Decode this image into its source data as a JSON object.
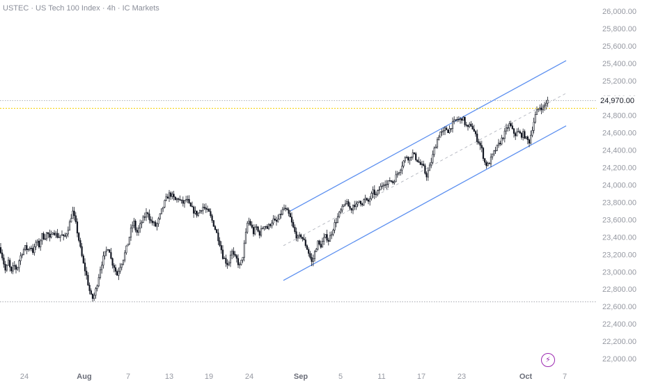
{
  "chart_title": "USTEC · US Tech 100 Index · 4h · IC Markets",
  "current_price_label": "24,970.00",
  "brand_icon": "lightning-bolt-icon",
  "colors": {
    "candle": "#131722",
    "channel": "#5b8ff0",
    "midline": "#b2b5be",
    "current_price_line": "#f5d000",
    "horizontal_level": "#9598a1",
    "axis_text": "#9598a1",
    "logo": "#9b27b0"
  },
  "chart_data": {
    "type": "candlestick",
    "title": "USTEC · US Tech 100 Index · 4h · IC Markets",
    "symbol": "USTEC",
    "interval": "4h",
    "exchange": "IC Markets",
    "ylim": [
      21900,
      26050
    ],
    "y_ticks": [
      "26,000.00",
      "25,800.00",
      "25,600.00",
      "25,400.00",
      "25,200.00",
      "25,000.00",
      "24,800.00",
      "24,600.00",
      "24,400.00",
      "24,200.00",
      "24,000.00",
      "23,800.00",
      "23,600.00",
      "23,400.00",
      "23,200.00",
      "23,000.00",
      "22,800.00",
      "22,600.00",
      "22,400.00",
      "22,200.00",
      "22,000.00"
    ],
    "x_ticks": [
      "24",
      "Aug",
      "7",
      "13",
      "19",
      "24",
      "Sep",
      "5",
      "11",
      "17",
      "23",
      "Oct",
      "7"
    ],
    "current_price": 24970,
    "horizontal_levels": [
      24970,
      22655
    ],
    "price_path": [
      [
        0,
        23280
      ],
      [
        4,
        23150
      ],
      [
        8,
        23000
      ],
      [
        12,
        23120
      ],
      [
        16,
        22980
      ],
      [
        20,
        23080
      ],
      [
        24,
        23020
      ],
      [
        28,
        23150
      ],
      [
        32,
        23230
      ],
      [
        36,
        23280
      ],
      [
        40,
        23250
      ],
      [
        44,
        23300
      ],
      [
        48,
        23220
      ],
      [
        52,
        23350
      ],
      [
        56,
        23300
      ],
      [
        60,
        23420
      ],
      [
        64,
        23390
      ],
      [
        68,
        23460
      ],
      [
        72,
        23360
      ],
      [
        76,
        23480
      ],
      [
        80,
        23430
      ],
      [
        84,
        23400
      ],
      [
        88,
        23430
      ],
      [
        92,
        23380
      ],
      [
        96,
        23460
      ],
      [
        100,
        23560
      ],
      [
        104,
        23700
      ],
      [
        108,
        23580
      ],
      [
        112,
        23420
      ],
      [
        116,
        23240
      ],
      [
        120,
        23080
      ],
      [
        124,
        22960
      ],
      [
        128,
        22800
      ],
      [
        132,
        22680
      ],
      [
        136,
        22740
      ],
      [
        140,
        22880
      ],
      [
        144,
        23040
      ],
      [
        148,
        23150
      ],
      [
        152,
        23230
      ],
      [
        156,
        23300
      ],
      [
        160,
        23120
      ],
      [
        164,
        23060
      ],
      [
        168,
        22960
      ],
      [
        172,
        23060
      ],
      [
        176,
        23130
      ],
      [
        180,
        23230
      ],
      [
        184,
        23340
      ],
      [
        188,
        23480
      ],
      [
        192,
        23580
      ],
      [
        196,
        23440
      ],
      [
        200,
        23510
      ],
      [
        204,
        23580
      ],
      [
        208,
        23640
      ],
      [
        212,
        23690
      ],
      [
        216,
        23580
      ],
      [
        220,
        23560
      ],
      [
        224,
        23520
      ],
      [
        228,
        23600
      ],
      [
        232,
        23700
      ],
      [
        236,
        23790
      ],
      [
        240,
        23860
      ],
      [
        244,
        23900
      ],
      [
        248,
        23860
      ],
      [
        252,
        23820
      ],
      [
        256,
        23850
      ],
      [
        260,
        23800
      ],
      [
        264,
        23790
      ],
      [
        268,
        23840
      ],
      [
        272,
        23760
      ],
      [
        276,
        23720
      ],
      [
        280,
        23680
      ],
      [
        284,
        23660
      ],
      [
        288,
        23720
      ],
      [
        292,
        23750
      ],
      [
        296,
        23710
      ],
      [
        300,
        23680
      ],
      [
        304,
        23600
      ],
      [
        308,
        23520
      ],
      [
        312,
        23420
      ],
      [
        316,
        23320
      ],
      [
        320,
        23180
      ],
      [
        324,
        23120
      ],
      [
        328,
        23080
      ],
      [
        332,
        23250
      ],
      [
        336,
        23170
      ],
      [
        340,
        23140
      ],
      [
        344,
        23060
      ],
      [
        348,
        23150
      ],
      [
        352,
        23380
      ],
      [
        356,
        23600
      ],
      [
        360,
        23540
      ],
      [
        364,
        23450
      ],
      [
        368,
        23520
      ],
      [
        372,
        23430
      ],
      [
        376,
        23490
      ],
      [
        380,
        23550
      ],
      [
        384,
        23500
      ],
      [
        388,
        23550
      ],
      [
        392,
        23600
      ],
      [
        396,
        23560
      ],
      [
        400,
        23610
      ],
      [
        404,
        23680
      ],
      [
        408,
        23730
      ],
      [
        412,
        23690
      ],
      [
        416,
        23640
      ],
      [
        420,
        23530
      ],
      [
        424,
        23440
      ],
      [
        428,
        23380
      ],
      [
        432,
        23420
      ],
      [
        436,
        23360
      ],
      [
        440,
        23290
      ],
      [
        444,
        23200
      ],
      [
        448,
        23100
      ],
      [
        452,
        23220
      ],
      [
        456,
        23340
      ],
      [
        460,
        23290
      ],
      [
        464,
        23360
      ],
      [
        468,
        23410
      ],
      [
        472,
        23360
      ],
      [
        476,
        23450
      ],
      [
        480,
        23540
      ],
      [
        484,
        23610
      ],
      [
        488,
        23680
      ],
      [
        492,
        23730
      ],
      [
        496,
        23800
      ],
      [
        500,
        23760
      ],
      [
        504,
        23710
      ],
      [
        508,
        23790
      ],
      [
        512,
        23750
      ],
      [
        516,
        23820
      ],
      [
        520,
        23790
      ],
      [
        524,
        23840
      ],
      [
        528,
        23790
      ],
      [
        532,
        23860
      ],
      [
        536,
        23920
      ],
      [
        540,
        23880
      ],
      [
        544,
        23940
      ],
      [
        548,
        23990
      ],
      [
        552,
        24040
      ],
      [
        556,
        24000
      ],
      [
        560,
        24060
      ],
      [
        564,
        24030
      ],
      [
        568,
        24090
      ],
      [
        572,
        24150
      ],
      [
        576,
        24210
      ],
      [
        580,
        24280
      ],
      [
        584,
        24330
      ],
      [
        588,
        24300
      ],
      [
        592,
        24370
      ],
      [
        596,
        24320
      ],
      [
        600,
        24280
      ],
      [
        604,
        24230
      ],
      [
        608,
        24200
      ],
      [
        612,
        24100
      ],
      [
        616,
        24180
      ],
      [
        620,
        24290
      ],
      [
        624,
        24420
      ],
      [
        628,
        24520
      ],
      [
        632,
        24610
      ],
      [
        636,
        24590
      ],
      [
        640,
        24650
      ],
      [
        644,
        24620
      ],
      [
        648,
        24680
      ],
      [
        652,
        24720
      ],
      [
        656,
        24760
      ],
      [
        660,
        24740
      ],
      [
        664,
        24780
      ],
      [
        668,
        24700
      ],
      [
        672,
        24650
      ],
      [
        676,
        24700
      ],
      [
        680,
        24630
      ],
      [
        684,
        24540
      ],
      [
        688,
        24490
      ],
      [
        692,
        24400
      ],
      [
        696,
        24260
      ],
      [
        700,
        24220
      ],
      [
        704,
        24280
      ],
      [
        708,
        24350
      ],
      [
        712,
        24410
      ],
      [
        716,
        24460
      ],
      [
        720,
        24520
      ],
      [
        724,
        24580
      ],
      [
        728,
        24650
      ],
      [
        732,
        24700
      ],
      [
        736,
        24620
      ],
      [
        740,
        24580
      ],
      [
        744,
        24610
      ],
      [
        748,
        24570
      ],
      [
        752,
        24590
      ],
      [
        756,
        24520
      ],
      [
        760,
        24500
      ],
      [
        764,
        24640
      ],
      [
        768,
        24780
      ],
      [
        772,
        24860
      ],
      [
        776,
        24900
      ],
      [
        780,
        24880
      ],
      [
        784,
        24950
      ],
      [
        788,
        24970
      ]
    ],
    "channel": {
      "upper": [
        [
          417,
          23700
        ],
        [
          813,
          25430
        ]
      ],
      "lower": [
        [
          407,
          22900
        ],
        [
          813,
          24680
        ]
      ],
      "mid": [
        [
          407,
          23300
        ],
        [
          813,
          25055
        ]
      ]
    }
  }
}
